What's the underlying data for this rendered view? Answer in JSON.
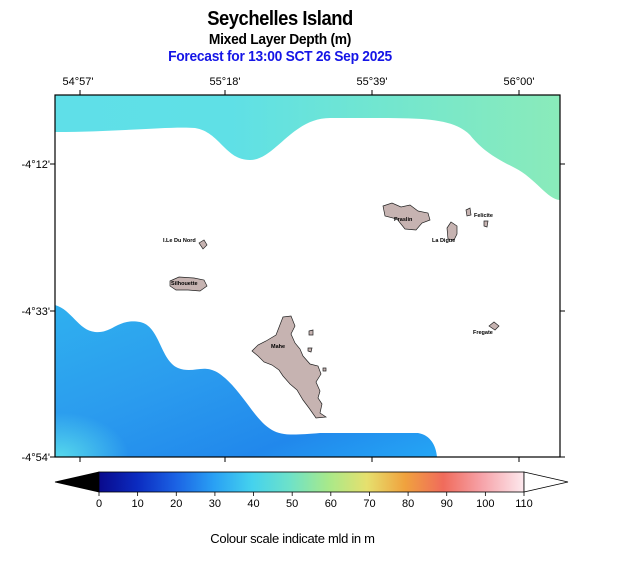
{
  "header": {
    "title": "Seychelles Island",
    "subtitle": "Mixed Layer Depth (m)",
    "forecast": "Forecast for  13:00 SCT 26 Sep 2025"
  },
  "axes": {
    "lon_ticks": [
      "54°57'",
      "55°18'",
      "55°39'",
      "56°00'"
    ],
    "lat_ticks": [
      "-4°12'",
      "-4°33'",
      "-4°54'"
    ]
  },
  "islands": {
    "mahe": "Mahe",
    "praslin": "Praslin",
    "la_digue": "La Digue",
    "felicite": "Felicite",
    "silhouette": "Silhouette",
    "ile_du_nord": "I.Le Du Nord",
    "fregate": "Fregate"
  },
  "colorbar": {
    "ticks": [
      "0",
      "10",
      "20",
      "30",
      "40",
      "50",
      "60",
      "70",
      "80",
      "90",
      "100",
      "110"
    ],
    "min": 0,
    "max": 110,
    "colors": [
      "#0a0a78",
      "#0f2fc8",
      "#1f6be8",
      "#27a8f5",
      "#45d4ee",
      "#6fe3c8",
      "#a6e88a",
      "#e8e070",
      "#f0a040",
      "#f06a5a",
      "#f7a6a8",
      "#fde6ea"
    ]
  },
  "caption": "Colour scale indicate mld in m"
}
